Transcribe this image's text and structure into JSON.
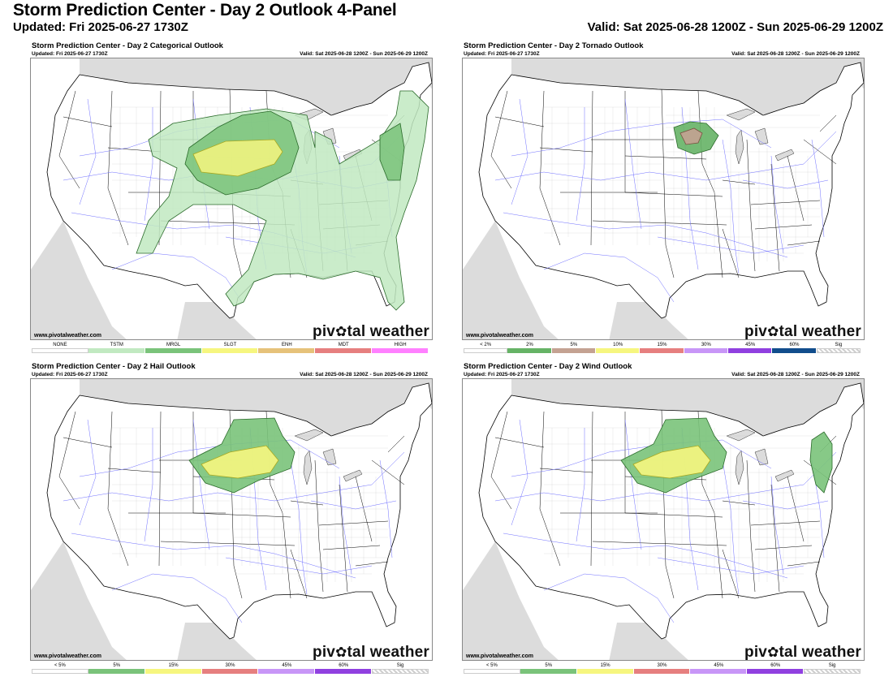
{
  "header": {
    "title": "Storm Prediction Center - Day 2 Outlook 4-Panel",
    "updated": "Updated: Fri 2025-06-27 1730Z",
    "valid": "Valid: Sat 2025-06-28 1200Z - Sun 2025-06-29 1200Z"
  },
  "colors": {
    "tstm": "#c1e9c1",
    "mrgl": "#7ac37a",
    "slgt": "#f6f67f",
    "tor5": "#c4a292",
    "land_gray": "#dcdcdc",
    "roads": "#6f6fff"
  },
  "panels": [
    {
      "title": "Storm Prediction Center - Day 2 Categorical Outlook",
      "updated": "Updated: Fri 2025-06-27 1730Z",
      "valid": "Valid: Sat 2025-06-28 1200Z - Sun 2025-06-29 1200Z",
      "site": "www.pivotalweather.com",
      "brand_left": "piv",
      "brand_right": "tal weather",
      "legend": [
        {
          "label": "NONE",
          "color": "#ffffff"
        },
        {
          "label": "TSTM",
          "color": "#c1e9c1"
        },
        {
          "label": "MRGL",
          "color": "#7ac37a"
        },
        {
          "label": "SLGT",
          "color": "#f6f67f"
        },
        {
          "label": "ENH",
          "color": "#e6c27a"
        },
        {
          "label": "MDT",
          "color": "#e67f7f"
        },
        {
          "label": "HIGH",
          "color": "#ff80ff"
        }
      ]
    },
    {
      "title": "Storm Prediction Center - Day 2 Tornado Outlook",
      "updated": "Updated: Fri 2025-06-27 1730Z",
      "valid": "Valid: Sat 2025-06-28 1200Z - Sun 2025-06-29 1200Z",
      "site": "www.pivotalweather.com",
      "brand_left": "piv",
      "brand_right": "tal weather",
      "legend": [
        {
          "label": "< 2%",
          "color": "#ffffff"
        },
        {
          "label": "2%",
          "color": "#66b366"
        },
        {
          "label": "5%",
          "color": "#c4a292"
        },
        {
          "label": "10%",
          "color": "#f6f67f"
        },
        {
          "label": "15%",
          "color": "#e67f7f"
        },
        {
          "label": "30%",
          "color": "#c896f7"
        },
        {
          "label": "45%",
          "color": "#9040e0"
        },
        {
          "label": "60%",
          "color": "#114d8c"
        },
        {
          "label": "Sig",
          "color": "hatch"
        }
      ]
    },
    {
      "title": "Storm Prediction Center - Day 2 Hail Outlook",
      "updated": "Updated: Fri 2025-06-27 1730Z",
      "valid": "Valid: Sat 2025-06-28 1200Z - Sun 2025-06-29 1200Z",
      "site": "www.pivotalweather.com",
      "brand_left": "piv",
      "brand_right": "tal weather",
      "legend": [
        {
          "label": "< 5%",
          "color": "#ffffff"
        },
        {
          "label": "5%",
          "color": "#7ac37a"
        },
        {
          "label": "15%",
          "color": "#f6f67f"
        },
        {
          "label": "30%",
          "color": "#e67f7f"
        },
        {
          "label": "45%",
          "color": "#c896f7"
        },
        {
          "label": "60%",
          "color": "#9040e0"
        },
        {
          "label": "Sig",
          "color": "hatch"
        }
      ]
    },
    {
      "title": "Storm Prediction Center - Day 2 Wind Outlook",
      "updated": "Updated: Fri 2025-06-27 1730Z",
      "valid": "Valid: Sat 2025-06-28 1200Z - Sun 2025-06-29 1200Z",
      "site": "www.pivotalweather.com",
      "brand_left": "piv",
      "brand_right": "tal weather",
      "legend": [
        {
          "label": "< 5%",
          "color": "#ffffff"
        },
        {
          "label": "5%",
          "color": "#7ac37a"
        },
        {
          "label": "15%",
          "color": "#f6f67f"
        },
        {
          "label": "30%",
          "color": "#e67f7f"
        },
        {
          "label": "45%",
          "color": "#c896f7"
        },
        {
          "label": "60%",
          "color": "#9040e0"
        },
        {
          "label": "Sig",
          "color": "hatch"
        }
      ]
    }
  ]
}
